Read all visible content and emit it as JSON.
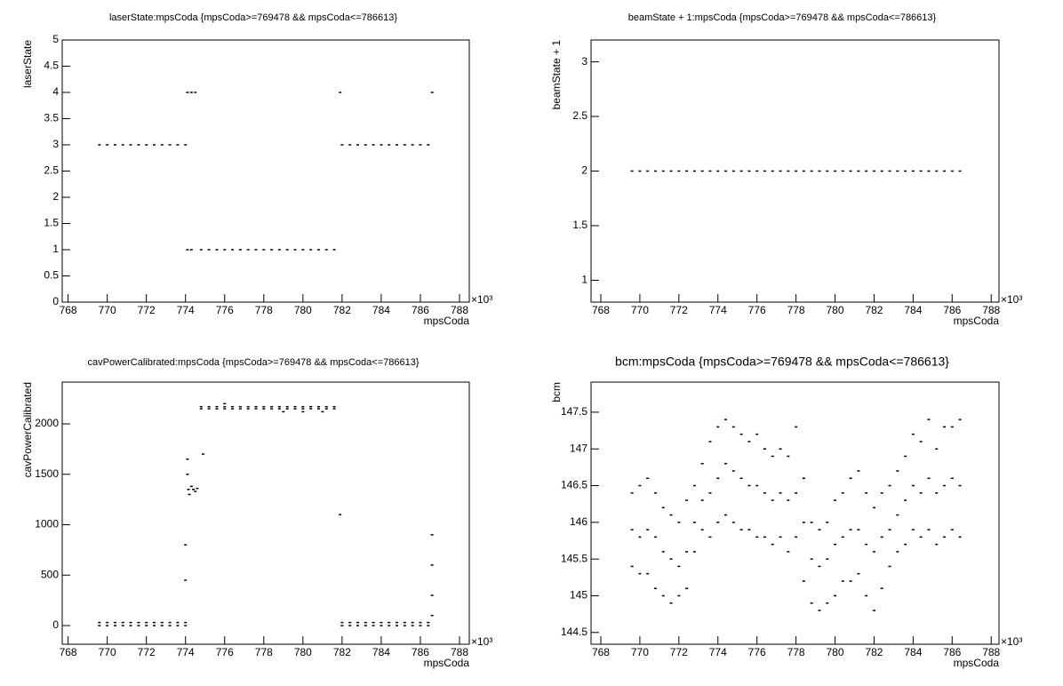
{
  "chart_data": [
    {
      "type": "scatter",
      "title": "laserState:mpsCoda {mpsCoda>=769478 && mpsCoda<=786613}",
      "x_label": "mpsCoda",
      "y_label": "laserState",
      "axis_multiplier": "×10³",
      "xlim": [
        767.7,
        788.5
      ],
      "ylim": [
        0,
        5
      ],
      "xticks": [
        768,
        770,
        772,
        774,
        776,
        778,
        780,
        782,
        784,
        786,
        788
      ],
      "yticks": [
        0,
        0.5,
        1,
        1.5,
        2,
        2.5,
        3,
        3.5,
        4,
        4.5,
        5
      ],
      "series": [
        {
          "color": "#000000",
          "x": [
            769.6,
            770.0,
            770.4,
            770.8,
            771.2,
            771.6,
            772.0,
            772.4,
            772.8,
            773.2,
            773.6,
            774.0,
            774.1,
            774.3,
            774.5,
            774.1,
            774.3,
            774.8,
            775.2,
            775.6,
            776.0,
            776.4,
            776.8,
            777.2,
            777.6,
            778.0,
            778.4,
            778.8,
            779.2,
            779.6,
            780.0,
            780.4,
            780.8,
            781.2,
            781.6,
            781.9,
            782.0,
            782.4,
            782.8,
            783.2,
            783.6,
            784.0,
            784.4,
            784.8,
            785.2,
            785.6,
            786.0,
            786.4,
            786.6
          ],
          "values": [
            3,
            3,
            3,
            3,
            3,
            3,
            3,
            3,
            3,
            3,
            3,
            3,
            4,
            4,
            4,
            1,
            1,
            1,
            1,
            1,
            1,
            1,
            1,
            1,
            1,
            1,
            1,
            1,
            1,
            1,
            1,
            1,
            1,
            1,
            1,
            4,
            3,
            3,
            3,
            3,
            3,
            3,
            3,
            3,
            3,
            3,
            3,
            3,
            4
          ]
        }
      ]
    },
    {
      "type": "scatter",
      "title": "beamState + 1:mpsCoda {mpsCoda>=769478 && mpsCoda<=786613}",
      "x_label": "mpsCoda",
      "y_label": "beamState + 1",
      "axis_multiplier": "×10³",
      "xlim": [
        767.5,
        788.4
      ],
      "ylim": [
        0.8,
        3.2
      ],
      "xticks": [
        768,
        770,
        772,
        774,
        776,
        778,
        780,
        782,
        784,
        786,
        788
      ],
      "yticks": [
        1,
        1.5,
        2,
        2.5,
        3
      ],
      "series": [
        {
          "color": "#000000",
          "x": [
            769.6,
            770.0,
            770.4,
            770.8,
            771.2,
            771.6,
            772.0,
            772.4,
            772.8,
            773.2,
            773.6,
            774.0,
            774.4,
            774.8,
            775.2,
            775.6,
            776.0,
            776.4,
            776.8,
            777.2,
            777.6,
            778.0,
            778.4,
            778.8,
            779.2,
            779.6,
            780.0,
            780.4,
            780.8,
            781.2,
            781.6,
            782.0,
            782.4,
            782.8,
            783.2,
            783.6,
            784.0,
            784.4,
            784.8,
            785.2,
            785.6,
            786.0,
            786.4
          ],
          "values": [
            2,
            2,
            2,
            2,
            2,
            2,
            2,
            2,
            2,
            2,
            2,
            2,
            2,
            2,
            2,
            2,
            2,
            2,
            2,
            2,
            2,
            2,
            2,
            2,
            2,
            2,
            2,
            2,
            2,
            2,
            2,
            2,
            2,
            2,
            2,
            2,
            2,
            2,
            2,
            2,
            2,
            2,
            2
          ]
        }
      ]
    },
    {
      "type": "scatter",
      "title": "cavPowerCalibrated:mpsCoda {mpsCoda>=769478 && mpsCoda<=786613}",
      "x_label": "mpsCoda",
      "y_label": "cavPowerCalibrated",
      "axis_multiplier": "×10³",
      "xlim": [
        767.7,
        788.5
      ],
      "ylim": [
        -185,
        2414
      ],
      "xticks": [
        768,
        770,
        772,
        774,
        776,
        778,
        780,
        782,
        784,
        786,
        788
      ],
      "yticks": [
        0,
        500,
        1000,
        1500,
        2000
      ],
      "series": [
        {
          "color": "#000000",
          "x": [
            769.6,
            769.6,
            770.0,
            770.0,
            770.4,
            770.4,
            770.8,
            770.8,
            771.2,
            771.2,
            771.6,
            771.6,
            772.0,
            772.0,
            772.4,
            772.4,
            772.8,
            772.8,
            773.2,
            773.2,
            773.6,
            773.6,
            774.0,
            774.0,
            774.0,
            774.0,
            774.1,
            774.1,
            774.15,
            774.2,
            774.3,
            774.4,
            774.5,
            774.6,
            774.9,
            774.8,
            774.8,
            775.2,
            775.2,
            775.6,
            775.6,
            776.0,
            776.0,
            776.4,
            776.4,
            776.8,
            776.8,
            777.2,
            777.2,
            777.6,
            777.6,
            778.0,
            778.0,
            778.4,
            778.4,
            778.8,
            778.8,
            779.2,
            779.2,
            779.6,
            779.6,
            780.0,
            780.0,
            780.4,
            780.4,
            780.8,
            780.8,
            781.2,
            781.2,
            781.6,
            781.6,
            776.0,
            779.0,
            780.0,
            781.0,
            781.9,
            782.0,
            782.0,
            782.4,
            782.4,
            782.8,
            782.8,
            783.2,
            783.2,
            783.6,
            783.6,
            784.0,
            784.0,
            784.4,
            784.4,
            784.8,
            784.8,
            785.2,
            785.2,
            785.6,
            785.6,
            786.0,
            786.0,
            786.4,
            786.4,
            786.6,
            786.6,
            786.6,
            786.6
          ],
          "values": [
            0,
            30,
            0,
            30,
            0,
            30,
            0,
            30,
            0,
            30,
            0,
            30,
            0,
            30,
            0,
            30,
            0,
            30,
            0,
            30,
            0,
            30,
            0,
            30,
            450,
            800,
            1650,
            1500,
            1350,
            1300,
            1380,
            1350,
            1330,
            1360,
            1700,
            2150,
            2170,
            2150,
            2170,
            2150,
            2170,
            2150,
            2170,
            2150,
            2170,
            2150,
            2170,
            2150,
            2170,
            2150,
            2170,
            2150,
            2170,
            2150,
            2170,
            2150,
            2170,
            2150,
            2170,
            2150,
            2170,
            2150,
            2170,
            2150,
            2170,
            2150,
            2170,
            2150,
            2170,
            2150,
            2170,
            2200,
            2120,
            2120,
            2120,
            1100,
            0,
            30,
            0,
            30,
            0,
            30,
            0,
            30,
            0,
            30,
            0,
            30,
            0,
            30,
            0,
            30,
            0,
            30,
            0,
            30,
            0,
            30,
            0,
            30,
            100,
            300,
            600,
            900
          ]
        }
      ]
    },
    {
      "type": "scatter",
      "title": "bcm:mpsCoda {mpsCoda>=769478 && mpsCoda<=786613}",
      "x_label": "mpsCoda",
      "y_label": "bcm",
      "axis_multiplier": "×10³",
      "xlim": [
        767.5,
        788.4
      ],
      "ylim": [
        144.34,
        147.91
      ],
      "xticks": [
        768,
        770,
        772,
        774,
        776,
        778,
        780,
        782,
        784,
        786,
        788
      ],
      "yticks": [
        144.5,
        145,
        145.5,
        146,
        146.5,
        147,
        147.5
      ],
      "series": [
        {
          "color": "#000000",
          "x": [
            769.6,
            769.6,
            769.6,
            770.0,
            770.0,
            770.0,
            770.4,
            770.4,
            770.4,
            770.8,
            770.8,
            770.8,
            771.2,
            771.2,
            771.2,
            771.6,
            771.6,
            771.6,
            772.0,
            772.0,
            772.0,
            772.4,
            772.4,
            772.4,
            772.8,
            772.8,
            772.8,
            773.2,
            773.2,
            773.2,
            773.6,
            773.6,
            773.6,
            774.0,
            774.0,
            774.0,
            774.4,
            774.4,
            774.4,
            774.8,
            774.8,
            774.8,
            775.2,
            775.2,
            775.2,
            775.6,
            775.6,
            775.6,
            776.0,
            776.0,
            776.0,
            776.4,
            776.4,
            776.4,
            776.8,
            776.8,
            776.8,
            777.2,
            777.2,
            777.2,
            777.6,
            777.6,
            777.6,
            778.0,
            778.0,
            778.0,
            778.4,
            778.4,
            778.4,
            778.8,
            778.8,
            778.8,
            779.2,
            779.2,
            779.2,
            779.6,
            779.6,
            779.6,
            780.0,
            780.0,
            780.0,
            780.4,
            780.4,
            780.4,
            780.8,
            780.8,
            780.8,
            781.2,
            781.2,
            781.2,
            781.6,
            781.6,
            781.6,
            782.0,
            782.0,
            782.0,
            782.4,
            782.4,
            782.4,
            782.8,
            782.8,
            782.8,
            783.2,
            783.2,
            783.2,
            783.6,
            783.6,
            783.6,
            784.0,
            784.0,
            784.0,
            784.4,
            784.4,
            784.4,
            784.8,
            784.8,
            784.8,
            785.2,
            785.2,
            785.2,
            785.6,
            785.6,
            785.6,
            786.0,
            786.0,
            786.0,
            786.4,
            786.4,
            786.4
          ],
          "values": [
            145.4,
            145.9,
            146.4,
            145.3,
            145.8,
            146.5,
            145.3,
            145.9,
            146.6,
            145.1,
            145.8,
            146.4,
            145.0,
            145.6,
            146.2,
            144.9,
            145.5,
            146.1,
            145.0,
            145.4,
            146.0,
            145.1,
            145.6,
            146.3,
            145.6,
            146.0,
            146.5,
            145.9,
            146.3,
            146.8,
            145.8,
            146.4,
            147.1,
            146.0,
            146.6,
            147.3,
            146.1,
            146.8,
            147.4,
            146.0,
            146.7,
            147.3,
            145.9,
            146.6,
            147.2,
            145.9,
            146.5,
            147.1,
            145.8,
            146.5,
            147.2,
            145.8,
            146.4,
            147.0,
            145.7,
            146.3,
            146.9,
            145.8,
            146.4,
            147.0,
            145.6,
            146.3,
            146.9,
            145.8,
            146.4,
            147.3,
            145.2,
            146.0,
            146.6,
            144.9,
            145.5,
            146.0,
            144.8,
            145.4,
            145.9,
            144.9,
            145.5,
            146.0,
            145.0,
            145.7,
            146.3,
            145.2,
            145.8,
            146.4,
            145.2,
            145.9,
            146.6,
            145.3,
            145.9,
            146.7,
            145.0,
            145.7,
            146.4,
            144.8,
            145.6,
            146.2,
            145.1,
            145.8,
            146.4,
            145.4,
            145.9,
            146.5,
            145.6,
            146.1,
            146.7,
            145.7,
            146.3,
            146.9,
            145.9,
            146.5,
            147.2,
            145.8,
            146.4,
            147.1,
            145.9,
            146.6,
            147.4,
            145.7,
            146.4,
            147.0,
            145.8,
            146.5,
            147.3,
            145.9,
            146.6,
            147.3,
            145.8,
            146.5,
            147.4
          ]
        }
      ]
    }
  ]
}
